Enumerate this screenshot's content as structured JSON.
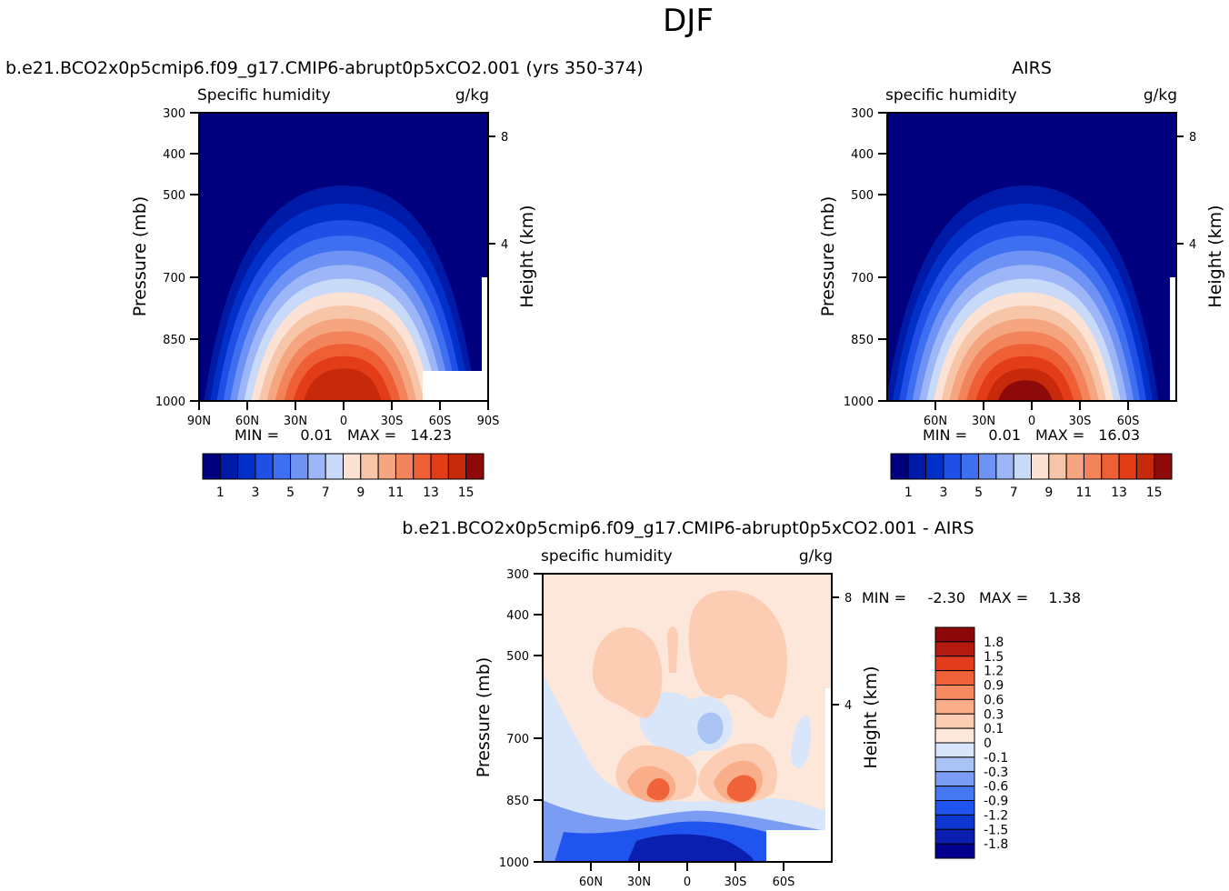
{
  "figure": {
    "title": "DJF"
  },
  "colors": {
    "abs_scale": [
      "#00007f",
      "#001aa8",
      "#0030c8",
      "#1f4fe6",
      "#3d6ff0",
      "#6e93f5",
      "#9db6f7",
      "#c9daf8",
      "#fbe2d4",
      "#f7c6a8",
      "#f5a57f",
      "#f2835b",
      "#ef5f36",
      "#e33d18",
      "#c62a0a",
      "#8e0a0a"
    ],
    "diff_scale": [
      "#00008c",
      "#0a1fb0",
      "#0d37d0",
      "#1f55ee",
      "#4677f2",
      "#7b9cf3",
      "#a9c3f5",
      "#d9e6fa",
      "#fde7db",
      "#fccdb2",
      "#f9ad89",
      "#f58a60",
      "#f0623a",
      "#e13d1c",
      "#b41a10",
      "#8c0707"
    ],
    "missing": "#ffffff"
  },
  "chart_data": [
    {
      "type": "heatmap",
      "title": "b.e21.BCO2x0p5cmip6.f09_g17.CMIP6-abrupt0p5xCO2.001 (yrs 350-374)",
      "subtitle_left": "Specific humidity",
      "subtitle_right": "g/kg",
      "ylabel": "Pressure (mb)",
      "ylabel_right": "Height (km)",
      "x_ticks": [
        "90N",
        "60N",
        "30N",
        "0",
        "30S",
        "60S",
        "90S"
      ],
      "y_ticks": [
        "300",
        "400",
        "500",
        "700",
        "850",
        "1000"
      ],
      "y_right_ticks": [
        "8",
        "4"
      ],
      "min_label": "MIN =",
      "min_value": "0.01",
      "max_label": "MAX =",
      "max_value": "14.23",
      "colorbar_labels": [
        "1",
        "3",
        "5",
        "7",
        "9",
        "11",
        "13",
        "15"
      ],
      "peak_level": 14.23
    },
    {
      "type": "heatmap",
      "title": "AIRS",
      "subtitle_left": "specific humidity",
      "subtitle_right": "g/kg",
      "ylabel": "Pressure (mb)",
      "ylabel_right": "Height (km)",
      "x_ticks": [
        "60N",
        "30N",
        "0",
        "30S",
        "60S"
      ],
      "y_ticks": [
        "300",
        "400",
        "500",
        "700",
        "850",
        "1000"
      ],
      "y_right_ticks": [
        "8",
        "4"
      ],
      "min_label": "MIN =",
      "min_value": "0.01",
      "max_label": "MAX =",
      "max_value": "16.03",
      "colorbar_labels": [
        "1",
        "3",
        "5",
        "7",
        "9",
        "11",
        "13",
        "15"
      ],
      "peak_level": 16.03
    },
    {
      "type": "heatmap",
      "title": "b.e21.BCO2x0p5cmip6.f09_g17.CMIP6-abrupt0p5xCO2.001 - AIRS",
      "subtitle_left": "specific humidity",
      "subtitle_right": "g/kg",
      "ylabel": "Pressure (mb)",
      "ylabel_right": "Height (km)",
      "x_ticks": [
        "60N",
        "30N",
        "0",
        "30S",
        "60S"
      ],
      "y_ticks": [
        "300",
        "400",
        "500",
        "700",
        "850",
        "1000"
      ],
      "y_right_ticks": [
        "8",
        "4"
      ],
      "min_label": "MIN =",
      "min_value": "-2.30",
      "max_label": "MAX =",
      "max_value": "1.38",
      "colorbar_labels": [
        "1.8",
        "1.5",
        "1.2",
        "0.9",
        "0.6",
        "0.3",
        "0.1",
        "0",
        "-0.1",
        "-0.3",
        "-0.6",
        "-0.9",
        "-1.2",
        "-1.5",
        "-1.8"
      ]
    }
  ]
}
